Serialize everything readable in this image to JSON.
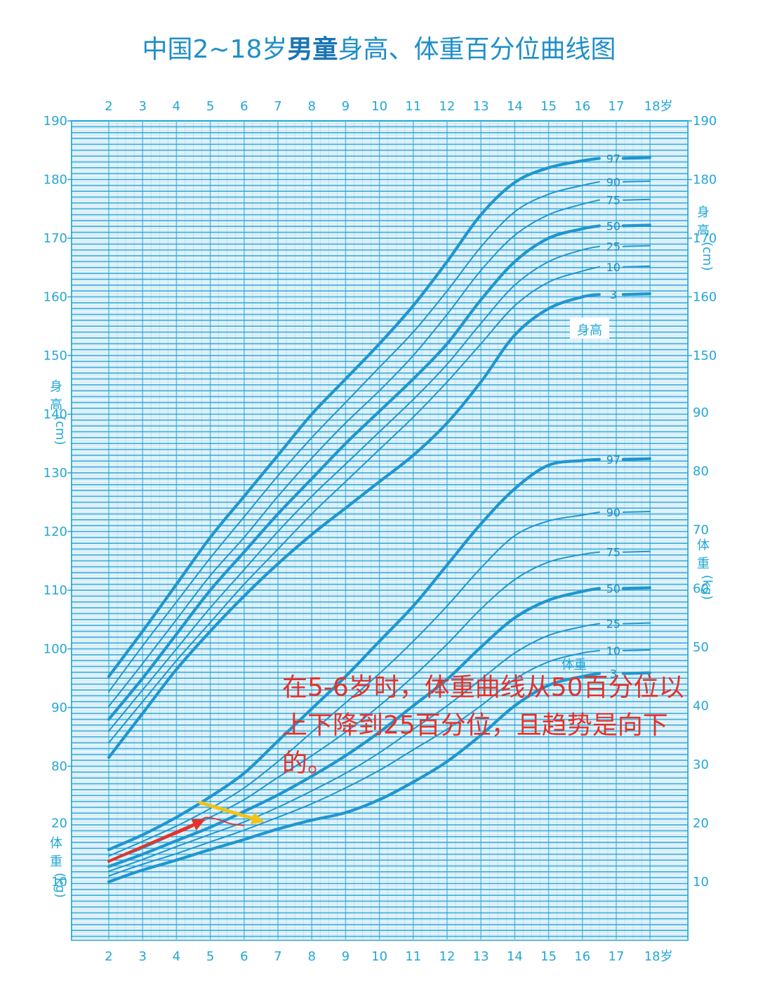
{
  "title": {
    "part1": "中国2~18岁",
    "part2": "男童",
    "part3": "身高、体重百分位曲线图"
  },
  "annotation": {
    "line1": "在5-6岁时，体重曲线从50百分位以",
    "line2": "上下降到25百分位，且趋势是向下",
    "line3": "的。"
  },
  "colors": {
    "grid_major": "#29a9db",
    "grid_minor": "#b5def0",
    "curve": "#1f96cf",
    "axis_text": "#23a7d6",
    "annotation_text": "#e5322b",
    "arrow_red": "#e5322b",
    "arrow_yellow": "#f2c21b"
  },
  "chart_data": {
    "type": "line",
    "x_label": "岁",
    "x_ticks": [
      "2",
      "3",
      "4",
      "5",
      "6",
      "7",
      "8",
      "9",
      "10",
      "11",
      "12",
      "13",
      "14",
      "15",
      "16",
      "17",
      "18岁"
    ],
    "left_axis": {
      "label": "身高 (cm)",
      "ticks": [
        "190",
        "180",
        "170",
        "160",
        "150",
        "140",
        "130",
        "120",
        "110",
        "100",
        "90",
        "80",
        "20",
        "10"
      ],
      "weight_label": "体重 (kg)"
    },
    "right_axis": {
      "height_label": "身高 (cm)",
      "height_ticks": [
        "190",
        "180",
        "170",
        "160",
        "150"
      ],
      "weight_label": "体重 (kg)",
      "weight_ticks": [
        "90",
        "80",
        "70",
        "60",
        "50",
        "40",
        "30",
        "20",
        "10"
      ]
    },
    "height_label_in_plot": "身高",
    "weight_label_in_plot": "体重",
    "height_percentiles": [
      {
        "name": "97",
        "bold": true,
        "x": [
          2,
          3,
          4,
          5,
          6,
          7,
          8,
          9,
          10,
          11,
          12,
          13,
          14,
          15,
          16,
          16.5
        ],
        "cm": [
          95.3,
          103,
          111,
          119,
          126,
          133,
          140,
          146,
          152,
          158.5,
          166,
          174,
          179.5,
          182,
          183.2,
          183.6
        ]
      },
      {
        "name": "90",
        "bold": false,
        "x": [
          2,
          3,
          4,
          5,
          6,
          7,
          8,
          9,
          10,
          11,
          12,
          13,
          14,
          15,
          16,
          16.5
        ],
        "cm": [
          92.7,
          100.5,
          108,
          115.5,
          122.5,
          129.5,
          136,
          142,
          148,
          154,
          161,
          168.5,
          174.5,
          177.5,
          179,
          179.6
        ]
      },
      {
        "name": "75",
        "bold": false,
        "x": [
          2,
          3,
          4,
          5,
          6,
          7,
          8,
          9,
          10,
          11,
          12,
          13,
          14,
          15,
          16,
          16.5
        ],
        "cm": [
          90.2,
          97.5,
          105,
          112.5,
          119,
          126,
          132.5,
          138.5,
          144,
          150,
          157,
          164.5,
          170.5,
          174,
          175.8,
          176.5
        ]
      },
      {
        "name": "50",
        "bold": true,
        "x": [
          2,
          3,
          4,
          5,
          6,
          7,
          8,
          9,
          10,
          11,
          12,
          13,
          14,
          15,
          16,
          16.5
        ],
        "cm": [
          88,
          95,
          102.5,
          110,
          116.5,
          123,
          129,
          135,
          140.5,
          146,
          152,
          159.5,
          166,
          170,
          171.6,
          172.1
        ]
      },
      {
        "name": "25",
        "bold": false,
        "x": [
          2,
          3,
          4,
          5,
          6,
          7,
          8,
          9,
          10,
          11,
          12,
          13,
          14,
          15,
          16,
          16.5
        ],
        "cm": [
          86,
          93,
          100,
          107,
          113.5,
          120,
          126,
          131.5,
          137,
          142.5,
          148.5,
          155.5,
          162,
          166,
          168,
          168.6
        ]
      },
      {
        "name": "10",
        "bold": false,
        "x": [
          2,
          3,
          4,
          5,
          6,
          7,
          8,
          9,
          10,
          11,
          12,
          13,
          14,
          15,
          16,
          16.5
        ],
        "cm": [
          84,
          91,
          98,
          104.5,
          111,
          117,
          123,
          128.5,
          134,
          139.5,
          145.5,
          152,
          158.5,
          162.5,
          164.4,
          165.1
        ]
      },
      {
        "name": "3",
        "bold": true,
        "x": [
          2,
          3,
          4,
          5,
          6,
          7,
          8,
          9,
          10,
          11,
          12,
          13,
          14,
          15,
          16,
          16.5
        ],
        "cm": [
          81.5,
          89,
          96.5,
          103,
          109,
          114.5,
          119.5,
          124,
          128.5,
          133,
          138.5,
          145.5,
          153.5,
          158,
          160,
          160.4
        ]
      }
    ],
    "weight_percentiles": [
      {
        "name": "97",
        "bold": true,
        "x": [
          2,
          3,
          4,
          5,
          6,
          7,
          8,
          9,
          10,
          11,
          12,
          13,
          14,
          15,
          16,
          16.5
        ],
        "kg": [
          15.5,
          18,
          21,
          24.5,
          28.5,
          34,
          39.5,
          45,
          51,
          57,
          64,
          71,
          77,
          81,
          81.8,
          82
        ]
      },
      {
        "name": "90",
        "bold": false,
        "x": [
          2,
          3,
          4,
          5,
          6,
          7,
          8,
          9,
          10,
          11,
          12,
          13,
          14,
          15,
          16,
          16.5
        ],
        "kg": [
          14.4,
          16.9,
          19.5,
          22.5,
          26,
          30.5,
          35.5,
          40.5,
          45.5,
          51,
          57,
          63.5,
          69,
          71.5,
          72.5,
          73
        ]
      },
      {
        "name": "75",
        "bold": false,
        "x": [
          2,
          3,
          4,
          5,
          6,
          7,
          8,
          9,
          10,
          11,
          12,
          13,
          14,
          15,
          16,
          16.5
        ],
        "kg": [
          13.5,
          15.7,
          18.3,
          21,
          24,
          27.8,
          31.5,
          35.5,
          40,
          45,
          50.5,
          56.5,
          61.5,
          64.5,
          65.8,
          66.2
        ]
      },
      {
        "name": "50",
        "bold": true,
        "x": [
          2,
          3,
          4,
          5,
          6,
          7,
          8,
          9,
          10,
          11,
          12,
          13,
          14,
          15,
          16,
          16.5
        ],
        "kg": [
          12.6,
          14.7,
          17,
          19.3,
          22,
          24.8,
          28,
          31.5,
          35.5,
          40,
          44.5,
          50,
          55,
          58,
          59.5,
          60
        ]
      },
      {
        "name": "25",
        "bold": false,
        "x": [
          2,
          3,
          4,
          5,
          6,
          7,
          8,
          9,
          10,
          11,
          12,
          13,
          14,
          15,
          16,
          16.5
        ],
        "kg": [
          11.8,
          13.8,
          16,
          18.1,
          20.2,
          22.7,
          25.5,
          28.5,
          32,
          36,
          40,
          44.5,
          49,
          52,
          53.5,
          54
        ]
      },
      {
        "name": "10",
        "bold": false,
        "x": [
          2,
          3,
          4,
          5,
          6,
          7,
          8,
          9,
          10,
          11,
          12,
          13,
          14,
          15,
          16,
          16.5
        ],
        "kg": [
          11,
          13,
          14.8,
          16.8,
          18.8,
          21,
          23.3,
          26,
          29,
          32.5,
          36,
          40,
          44.5,
          47.5,
          49,
          49.4
        ]
      },
      {
        "name": "3",
        "bold": true,
        "x": [
          2,
          3,
          4,
          5,
          6,
          7,
          8,
          9,
          10,
          11,
          12,
          13,
          14,
          15,
          16,
          16.5
        ],
        "kg": [
          10,
          12,
          13.7,
          15.5,
          17.2,
          19,
          20.5,
          21.8,
          24,
          27,
          30.5,
          35,
          40,
          43.5,
          45,
          45.5
        ]
      }
    ],
    "child_weight_path": {
      "x": [
        2,
        3,
        4,
        4.5,
        4.8,
        5.0,
        5.3,
        5.6,
        6.0
      ],
      "kg": [
        13.5,
        15.9,
        18.2,
        19.5,
        20.8,
        20.9,
        20.5,
        19.9,
        19.6
      ]
    },
    "red_arrow": {
      "x_start": 2,
      "kg_start": 13.5,
      "x_end": 4.85,
      "kg_end": 20.6
    },
    "yellow_arrow": {
      "x_start": 4.7,
      "kg_start": 23.5,
      "x_end": 6.6,
      "kg_end": 20.2
    }
  }
}
